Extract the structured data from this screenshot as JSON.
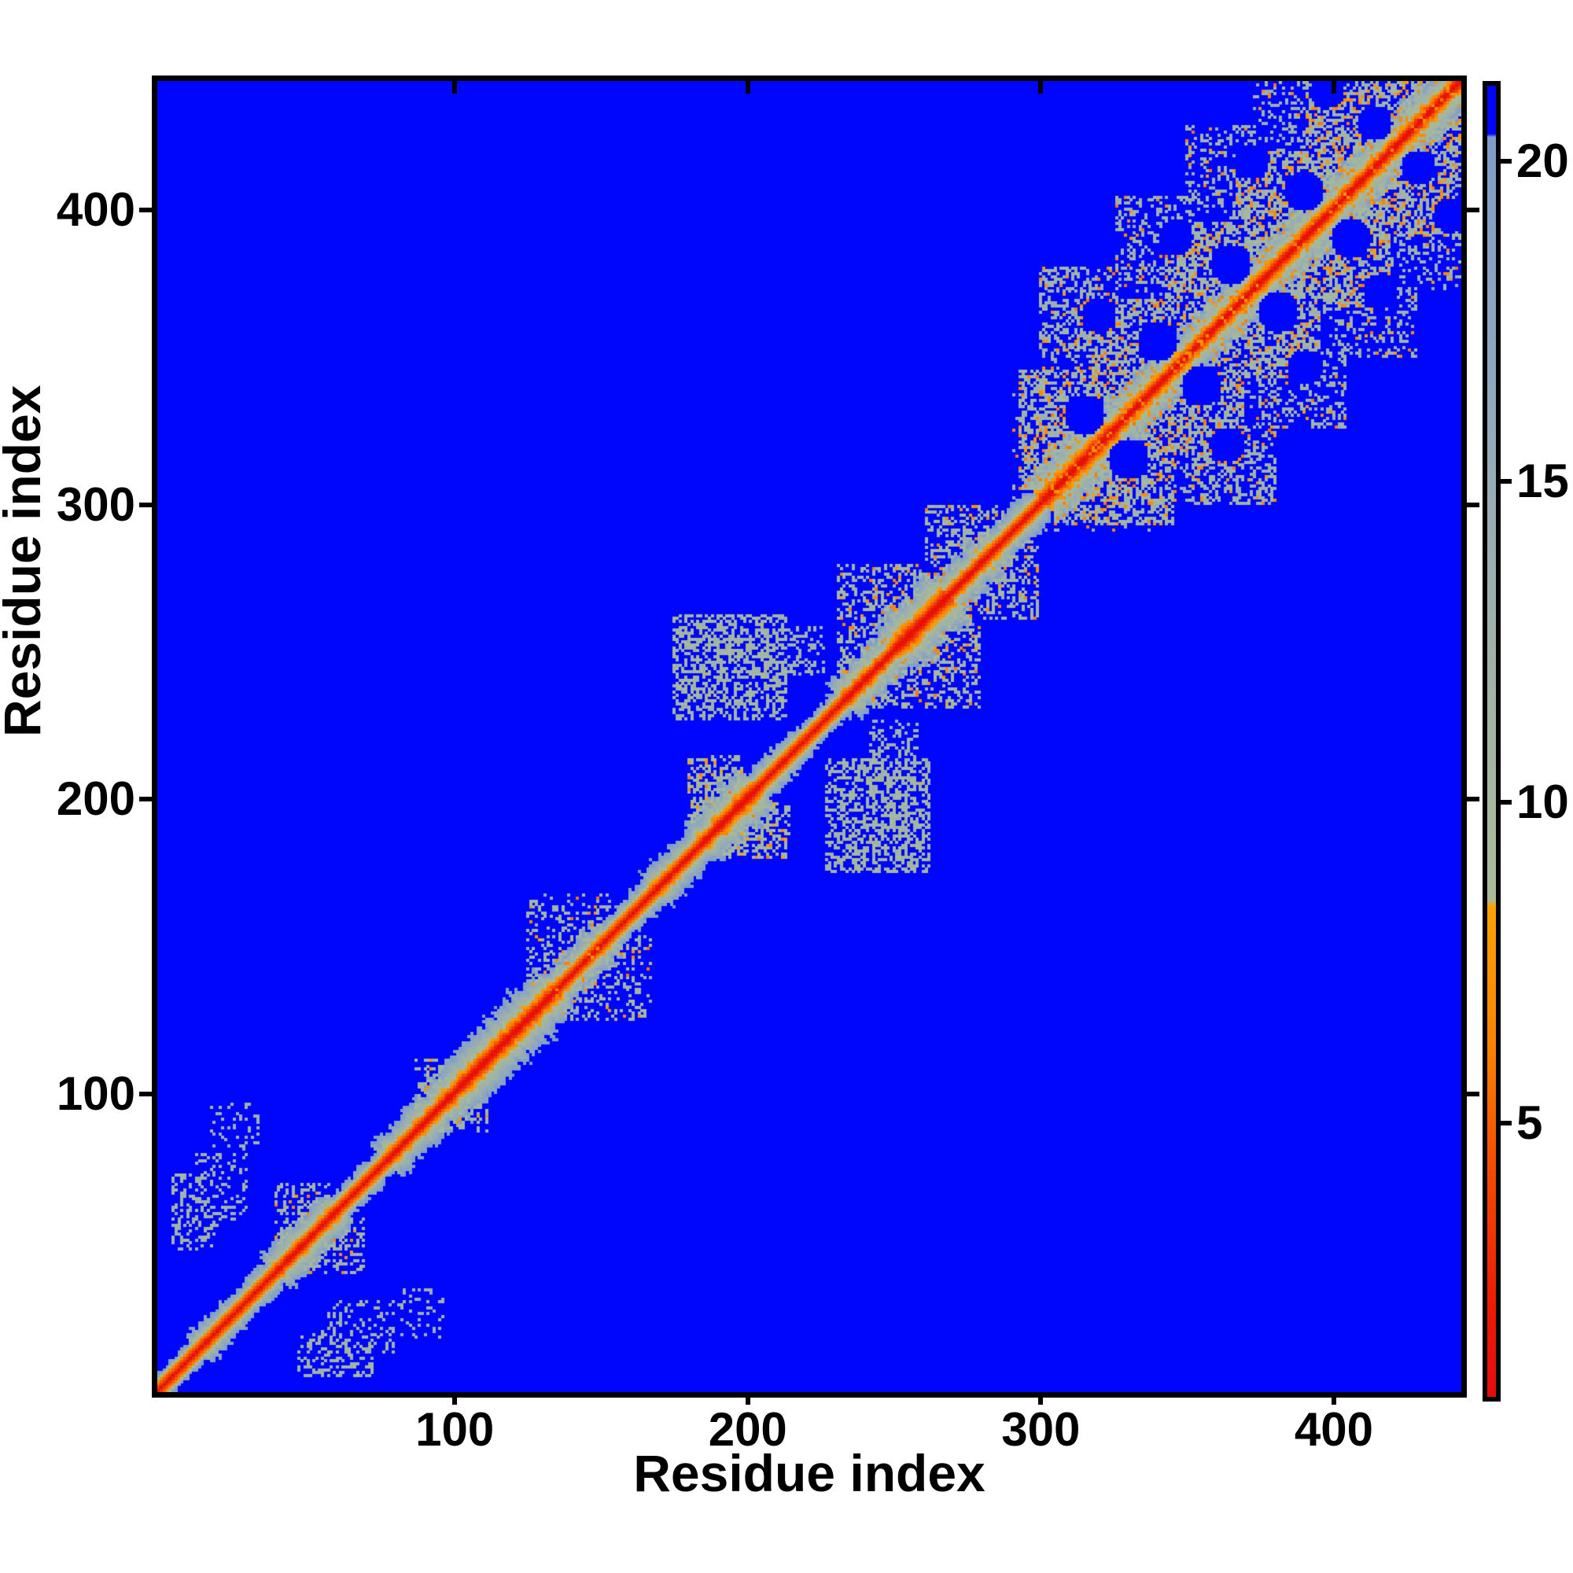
{
  "axes": {
    "x_label": "Residue index",
    "y_label": "Residue index",
    "x_ticks": [
      100,
      200,
      300,
      400
    ],
    "y_ticks": [
      100,
      200,
      300,
      400
    ],
    "x_range": [
      0,
      445
    ],
    "y_range": [
      0,
      445
    ]
  },
  "colorbar": {
    "ticks": [
      5,
      10,
      15,
      20
    ],
    "vmin": 0.8,
    "vmax": 21.25
  },
  "colors": {
    "background_blue": "#0005fb",
    "diagonal_red": "#ec1206",
    "orange": "#fba202",
    "sage": "#a9bc98",
    "steel": "#7e9bcb",
    "frame_black": "#000000"
  },
  "chart_data": {
    "type": "heatmap",
    "title": "",
    "xlabel": "Residue index",
    "ylabel": "Residue index",
    "x_range": [
      0,
      445
    ],
    "y_range": [
      0,
      445
    ],
    "n_residues": 445,
    "symmetric": true,
    "colorbar_range": [
      0.8,
      21.25
    ],
    "colorbar_ticks": [
      5,
      10,
      15,
      20
    ],
    "description": "Symmetric residue-residue distance map: red diagonal (short distances), orange/sage band of varying width along diagonal, speckled off-diagonal contact clusters, uniform blue background for distances above ~20.4.",
    "colormap_stops": [
      [
        0.8,
        "#e60d0d"
      ],
      [
        2.2,
        "#ec1a06"
      ],
      [
        4.8,
        "#f55600"
      ],
      [
        6.2,
        "#f98200"
      ],
      [
        8.45,
        "#fba202"
      ],
      [
        8.55,
        "#a9bc98"
      ],
      [
        12.0,
        "#a1b3a7"
      ],
      [
        16.0,
        "#93aabb"
      ],
      [
        20.0,
        "#819ec8"
      ],
      [
        20.45,
        "#7e9bcb"
      ],
      [
        20.5,
        "#0005fb"
      ],
      [
        21.3,
        "#0005fb"
      ]
    ],
    "diagonal_core": {
      "d0": 1.2,
      "slope": 1.85,
      "max_k": 4
    },
    "band_exponent": 0.86,
    "band_cutoff_value": 20.5,
    "band_halfwidth_segments": [
      [
        0,
        14,
        6
      ],
      [
        14,
        26,
        9
      ],
      [
        26,
        40,
        8
      ],
      [
        40,
        62,
        11
      ],
      [
        62,
        78,
        7
      ],
      [
        78,
        98,
        11
      ],
      [
        98,
        136,
        14
      ],
      [
        136,
        154,
        10
      ],
      [
        154,
        170,
        8
      ],
      [
        170,
        186,
        10
      ],
      [
        186,
        205,
        13
      ],
      [
        205,
        218,
        9
      ],
      [
        218,
        234,
        7
      ],
      [
        234,
        252,
        12
      ],
      [
        252,
        270,
        16
      ],
      [
        270,
        288,
        11
      ],
      [
        288,
        302,
        9
      ],
      [
        302,
        326,
        14
      ],
      [
        326,
        445,
        12
      ]
    ],
    "contact_clusters": [
      {
        "x": [
          5,
          19
        ],
        "y": [
          48,
          74
        ],
        "den": 0.33,
        "mean": 11.5,
        "spread": 5,
        "op": 0
      },
      {
        "x": [
          13,
          30
        ],
        "y": [
          56,
          80
        ],
        "den": 0.2,
        "mean": 12,
        "spread": 5,
        "op": 0
      },
      {
        "x": [
          18,
          34
        ],
        "y": [
          82,
          97
        ],
        "den": 0.18,
        "mean": 12,
        "spread": 4,
        "op": 0
      },
      {
        "x": [
          40,
          58
        ],
        "y": [
          50,
          70
        ],
        "den": 0.28,
        "mean": 11,
        "spread": 4,
        "op": 0.02
      },
      {
        "x": [
          88,
          100
        ],
        "y": [
          96,
          112
        ],
        "den": 0.28,
        "mean": 11,
        "spread": 4,
        "op": 0.02
      },
      {
        "x": [
          126,
          154
        ],
        "y": [
          136,
          168
        ],
        "den": 0.26,
        "mean": 11,
        "spread": 5,
        "op": 0.03
      },
      {
        "x": [
          176,
          214
        ],
        "y": [
          228,
          263
        ],
        "den": 0.5,
        "mean": 11,
        "spread": 5,
        "op": 0
      },
      {
        "x": [
          213,
          227
        ],
        "y": [
          243,
          259
        ],
        "den": 0.33,
        "mean": 11.8,
        "spread": 4,
        "op": 0
      },
      {
        "x": [
          181,
          199
        ],
        "y": [
          193,
          215
        ],
        "den": 0.4,
        "mean": 10.5,
        "spread": 4.5,
        "op": 0.02
      },
      {
        "x": [
          232,
          268
        ],
        "y": [
          240,
          280
        ],
        "den": 0.33,
        "mean": 10.8,
        "spread": 4.5,
        "op": 0.04,
        "kmin": 6
      },
      {
        "x": [
          262,
          288
        ],
        "y": [
          270,
          300
        ],
        "den": 0.33,
        "mean": 11,
        "spread": 4.5,
        "op": 0.03,
        "kmin": 6
      },
      {
        "x": [
          294,
          332
        ],
        "y": [
          306,
          346
        ],
        "den": 0.5,
        "mean": 11.3,
        "spread": 5,
        "op": 0.1
      },
      {
        "x": [
          318,
          358
        ],
        "y": [
          330,
          370
        ],
        "den": 0.5,
        "mean": 11.3,
        "spread": 5,
        "op": 0.1
      },
      {
        "x": [
          344,
          384
        ],
        "y": [
          356,
          396
        ],
        "den": 0.5,
        "mean": 11.3,
        "spread": 5,
        "op": 0.1
      },
      {
        "x": [
          368,
          408
        ],
        "y": [
          380,
          420
        ],
        "den": 0.5,
        "mean": 11.3,
        "spread": 5,
        "op": 0.1
      },
      {
        "x": [
          392,
          432
        ],
        "y": [
          404,
          444
        ],
        "den": 0.5,
        "mean": 11.3,
        "spread": 5,
        "op": 0.1
      },
      {
        "x": [
          414,
          442
        ],
        "y": [
          422,
          445
        ],
        "den": 0.45,
        "mean": 11.5,
        "spread": 5,
        "op": 0.08
      },
      {
        "x": [
          301,
          328
        ],
        "y": [
          350,
          381
        ],
        "den": 0.38,
        "mean": 11.8,
        "spread": 5,
        "op": 0.05
      },
      {
        "x": [
          327,
          353
        ],
        "y": [
          376,
          405
        ],
        "den": 0.3,
        "mean": 12,
        "spread": 5,
        "op": 0.04
      },
      {
        "x": [
          351,
          375
        ],
        "y": [
          400,
          429
        ],
        "den": 0.27,
        "mean": 12,
        "spread": 5,
        "op": 0.03
      },
      {
        "x": [
          374,
          396
        ],
        "y": [
          422,
          445
        ],
        "den": 0.27,
        "mean": 12,
        "spread": 5,
        "op": 0.03
      },
      {
        "x": [
          292,
          445
        ],
        "y": [
          296,
          445
        ],
        "den": 0.1,
        "mean": 12.5,
        "spread": 5,
        "op": 0.02,
        "kmin": 8,
        "kmax": 46
      }
    ],
    "blue_pockets": [
      [
        316,
        331,
        7
      ],
      [
        341,
        356,
        7
      ],
      [
        366,
        382,
        7
      ],
      [
        391,
        407,
        7
      ],
      [
        415,
        430,
        6
      ],
      [
        321,
        365,
        6
      ],
      [
        347,
        391,
        6
      ],
      [
        373,
        417,
        6
      ],
      [
        399,
        441,
        6
      ]
    ]
  }
}
